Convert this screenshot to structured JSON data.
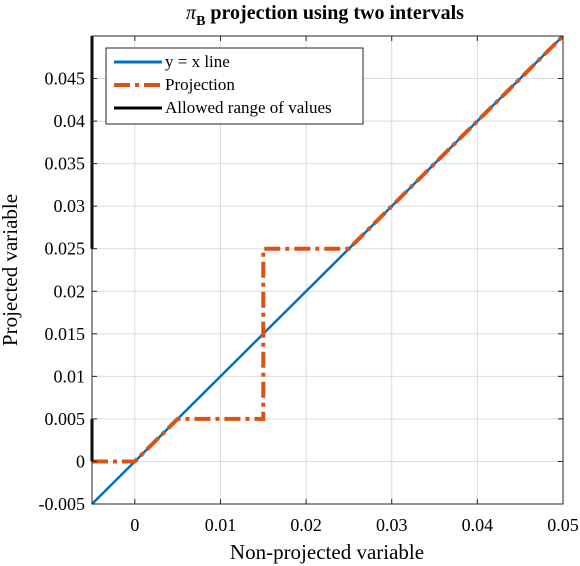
{
  "chart_data": {
    "type": "line",
    "title_symbol": "π",
    "title_subscript": "B",
    "title_rest": " projection using two intervals",
    "xlabel": "Non-projected variable",
    "ylabel": "Projected variable",
    "xlim": [
      -0.005,
      0.05
    ],
    "ylim": [
      -0.005,
      0.05
    ],
    "x_ticks": [
      0,
      0.01,
      0.02,
      0.03,
      0.04,
      0.05
    ],
    "x_tick_labels": [
      "0",
      "0.01",
      "0.02",
      "0.03",
      "0.04",
      "0.05"
    ],
    "y_ticks": [
      -0.005,
      0,
      0.005,
      0.01,
      0.015,
      0.02,
      0.025,
      0.03,
      0.035,
      0.04,
      0.045
    ],
    "y_tick_labels": [
      "-0.005",
      "0",
      "0.005",
      "0.01",
      "0.015",
      "0.02",
      "0.025",
      "0.03",
      "0.035",
      "0.04",
      "0.045"
    ],
    "grid": true,
    "legend_position": "top-left",
    "series": [
      {
        "name": "y = x line",
        "color": "#0072BD",
        "style": "solid",
        "x": [
          -0.005,
          0.05
        ],
        "y": [
          -0.005,
          0.05
        ]
      },
      {
        "name": "Projection",
        "color": "#D95319",
        "style": "dash-dot",
        "x": [
          -0.005,
          0,
          0.005,
          0.015,
          0.015,
          0.025,
          0.05
        ],
        "y": [
          0,
          0,
          0.005,
          0.005,
          0.025,
          0.025,
          0.05
        ]
      },
      {
        "name": "Allowed range of values",
        "color": "#000000",
        "style": "solid",
        "segments": [
          {
            "x": [
              -0.005,
              -0.005
            ],
            "y": [
              0,
              0.005
            ]
          },
          {
            "x": [
              -0.005,
              -0.005
            ],
            "y": [
              0.025,
              0.05
            ]
          }
        ]
      }
    ]
  }
}
